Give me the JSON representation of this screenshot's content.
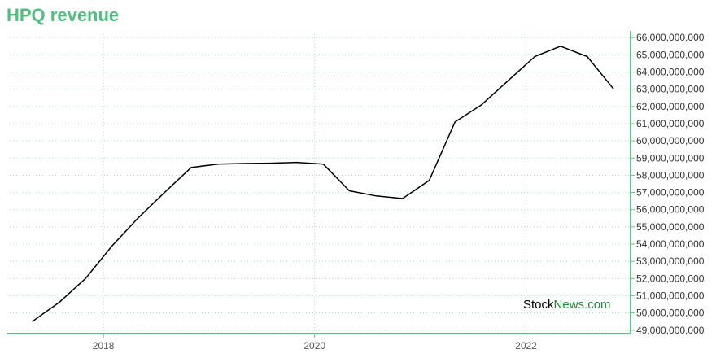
{
  "header": {
    "title": "HPQ revenue"
  },
  "watermark": {
    "part1": "Stock",
    "part2": "News.com",
    "color1": "#000000",
    "color2": "#1a8f3a"
  },
  "colors": {
    "title": "#4fbf7f",
    "axis": "#5cc48a",
    "grid": "#a8dcc4",
    "line": "#000000"
  },
  "chart_data": {
    "type": "line",
    "title": "HPQ revenue",
    "xlabel": "",
    "ylabel": "",
    "ylim": [
      48800000000,
      66200000000
    ],
    "xlim": [
      "2017-01-31",
      "2022-12-28"
    ],
    "grid": true,
    "legend": "none",
    "y_axis_side": "right",
    "x_ticks": [
      "2018",
      "2020",
      "2022"
    ],
    "y_ticks": [
      "49,000,000,000",
      "50,000,000,000",
      "51,000,000,000",
      "52,000,000,000",
      "53,000,000,000",
      "54,000,000,000",
      "55,000,000,000",
      "56,000,000,000",
      "57,000,000,000",
      "58,000,000,000",
      "59,000,000,000",
      "60,000,000,000",
      "61,000,000,000",
      "62,000,000,000",
      "63,000,000,000",
      "64,000,000,000",
      "65,000,000,000",
      "66,000,000,000"
    ],
    "series": [
      {
        "x": [
          "2017-04-30",
          "2017-07-31",
          "2017-10-31",
          "2018-01-31",
          "2018-04-30",
          "2018-07-31",
          "2018-10-31",
          "2019-01-31",
          "2019-04-30",
          "2019-07-31",
          "2019-10-31",
          "2020-01-31",
          "2020-04-30",
          "2020-07-31",
          "2020-10-31",
          "2021-01-31",
          "2021-04-30",
          "2021-07-31",
          "2021-10-31",
          "2022-01-31",
          "2022-04-30",
          "2022-07-31",
          "2022-10-31"
        ],
        "y": [
          49500000000,
          50600000000,
          52000000000,
          53900000000,
          55500000000,
          57000000000,
          58450000000,
          58650000000,
          58680000000,
          58700000000,
          58750000000,
          58650000000,
          57100000000,
          56800000000,
          56650000000,
          57700000000,
          61100000000,
          62100000000,
          63500000000,
          64900000000,
          65500000000,
          64900000000,
          63000000000
        ]
      }
    ]
  }
}
